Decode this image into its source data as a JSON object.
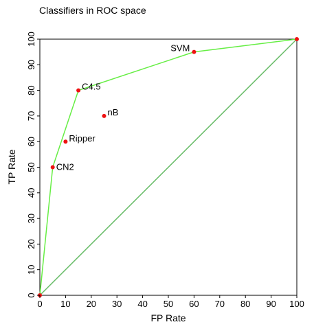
{
  "chart_data": {
    "type": "scatter",
    "title": "Classifiers in ROC space",
    "xlabel": "FP Rate",
    "ylabel": "TP Rate",
    "xlim": [
      0,
      100
    ],
    "ylim": [
      0,
      100
    ],
    "xticks": [
      "0",
      "10",
      "20",
      "30",
      "40",
      "50",
      "60",
      "70",
      "80",
      "90",
      "100"
    ],
    "yticks": [
      "0",
      "10",
      "20",
      "30",
      "40",
      "50",
      "60",
      "70",
      "80",
      "90",
      "100"
    ],
    "grid": false,
    "points": [
      {
        "label": "CN2",
        "x": 5,
        "y": 50
      },
      {
        "label": "Ripper",
        "x": 10,
        "y": 60
      },
      {
        "label": "C4.5",
        "x": 15,
        "y": 80
      },
      {
        "label": "nB",
        "x": 25,
        "y": 70
      },
      {
        "label": "SVM",
        "x": 60,
        "y": 95
      }
    ],
    "convex_hull": {
      "points": [
        [
          0,
          0
        ],
        [
          5,
          50
        ],
        [
          15,
          80
        ],
        [
          60,
          95
        ],
        [
          100,
          100
        ]
      ],
      "color": "#66ee44"
    },
    "diagonal": {
      "points": [
        [
          0,
          0
        ],
        [
          100,
          100
        ]
      ],
      "color": "#66bb66"
    },
    "marker_color": "#ee1111"
  }
}
